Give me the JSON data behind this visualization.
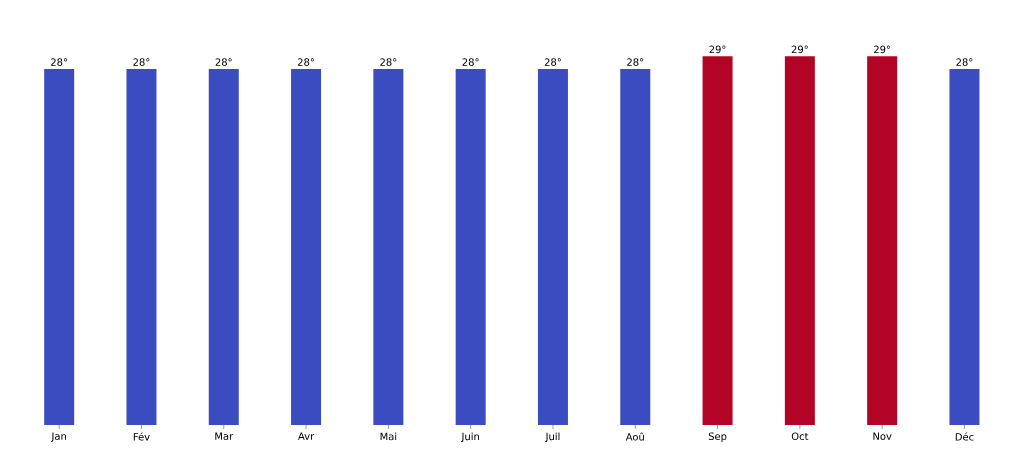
{
  "chart_data": {
    "type": "bar",
    "categories": [
      "Jan",
      "Fév",
      "Mar",
      "Avr",
      "Mai",
      "Juin",
      "Juil",
      "Aoû",
      "Sep",
      "Oct",
      "Nov",
      "Déc"
    ],
    "values": [
      28,
      28,
      28,
      28,
      28,
      28,
      28,
      28,
      29,
      29,
      29,
      28
    ],
    "value_labels": [
      "28°",
      "28°",
      "28°",
      "28°",
      "28°",
      "28°",
      "28°",
      "28°",
      "29°",
      "29°",
      "29°",
      "28°"
    ],
    "colors": [
      "#3b4cc0",
      "#3b4cc0",
      "#3b4cc0",
      "#3b4cc0",
      "#3b4cc0",
      "#3b4cc0",
      "#3b4cc0",
      "#3b4cc0",
      "#b40426",
      "#b40426",
      "#b40426",
      "#3b4cc0"
    ],
    "grid": false
  }
}
